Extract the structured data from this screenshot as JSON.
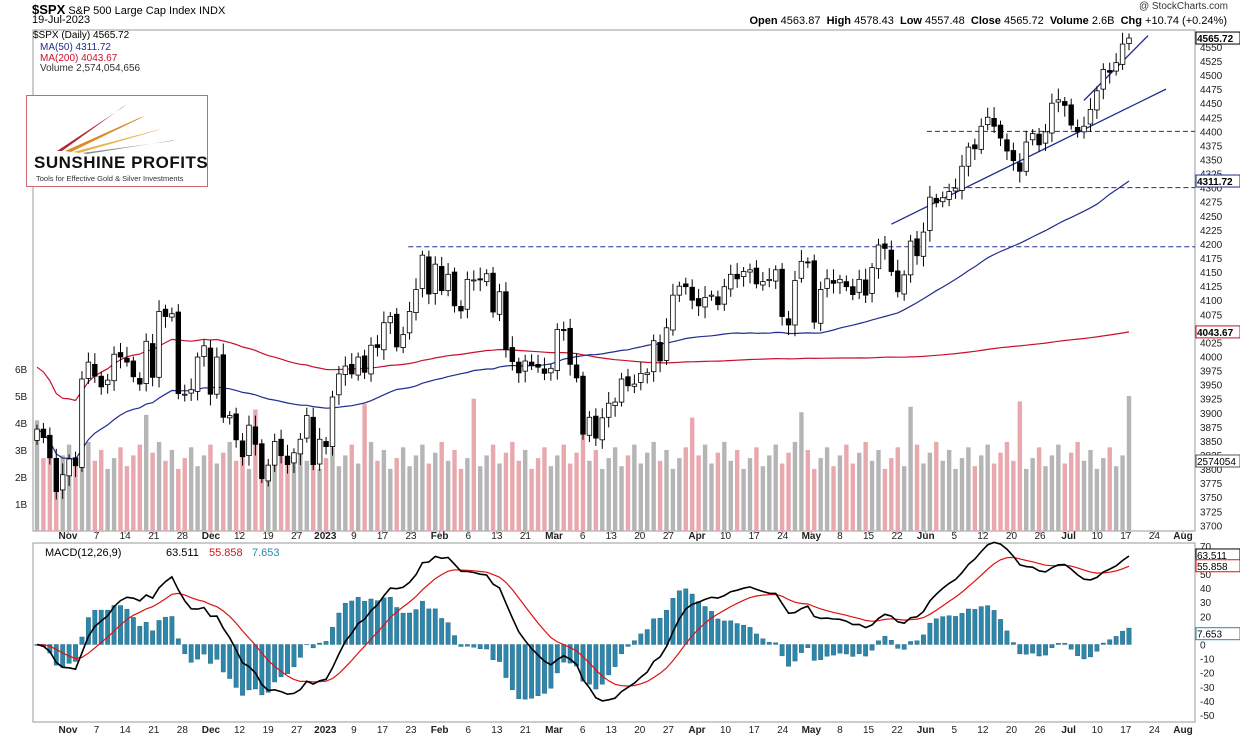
{
  "header": {
    "symbol": "$SPX",
    "name": "S&P 500 Large Cap Index",
    "exchange": "INDX",
    "date": "19-Jul-2023",
    "attribution": "@ StockCharts.com",
    "ohlc": {
      "open_label": "Open",
      "open": "4563.87",
      "high_label": "High",
      "high": "4578.43",
      "low_label": "Low",
      "low": "4557.48",
      "close_label": "Close",
      "close": "4565.72",
      "volume_label": "Volume",
      "volume": "2.6B",
      "chg_label": "Chg",
      "chg": "+10.74 (+0.24%)"
    }
  },
  "legend": {
    "price": "$SPX (Daily) 4565.72",
    "ma50": "MA(50) 4311.72",
    "ma200": "MA(200) 4043.67",
    "volume": "Volume 2,574,054,656"
  },
  "logo": {
    "brand": "SUNSHINE PROFITS",
    "tagline": "Tools for Effective Gold & Silver Investments"
  },
  "macd_legend": {
    "label": "MACD(12,26,9)",
    "macd": "63.511",
    "signal": "55.858",
    "hist": "7.653"
  },
  "colors": {
    "ma50": "#1f2c8f",
    "ma200": "#c8102e",
    "up": "#ffffff",
    "down": "#000000",
    "vol_up": "#b5b5b5",
    "vol_down": "#e8a8ad",
    "hist": "#2e86ab",
    "trend": "#1f2c8f",
    "signal": "#e01010",
    "macd": "#000000"
  },
  "chart_data": [
    {
      "type": "candlestick",
      "title": "$SPX S&P 500 Large Cap Index",
      "x_tick_labels": [
        "Nov",
        "7",
        "14",
        "21",
        "28",
        "Dec",
        "12",
        "19",
        "27",
        "2023",
        "9",
        "17",
        "23",
        "Feb",
        "6",
        "13",
        "21",
        "Mar",
        "6",
        "13",
        "20",
        "27",
        "Apr",
        "10",
        "17",
        "24",
        "May",
        "8",
        "15",
        "22",
        "Jun",
        "5",
        "12",
        "20",
        "26",
        "Jul",
        "10",
        "17",
        "24",
        "Aug"
      ],
      "y_ticks": [
        3700,
        3725,
        3750,
        3775,
        3800,
        3825,
        3850,
        3875,
        3900,
        3925,
        3950,
        3975,
        4000,
        4025,
        4050,
        4075,
        4100,
        4125,
        4150,
        4175,
        4200,
        4225,
        4250,
        4275,
        4300,
        4325,
        4350,
        4375,
        4400,
        4425,
        4450,
        4475,
        4500,
        4525,
        4550
      ],
      "ylim": [
        3690,
        4580
      ],
      "closes": [
        3871,
        3856,
        3820,
        3760,
        3790,
        3818,
        3806,
        3960,
        3990,
        3965,
        3946,
        3958,
        4004,
        3999,
        3990,
        3964,
        3951,
        4027,
        3963,
        4080,
        4071,
        4076,
        3934,
        3933,
        3941,
        3999,
        4019,
        3933,
        3999,
        3892,
        3895,
        3852,
        3822,
        3878,
        3844,
        3783,
        3807,
        3849,
        3824,
        3808,
        3829,
        3853,
        3895,
        3808,
        3853,
        3840,
        3928,
        3969,
        3983,
        3969,
        3999,
        3972,
        4020,
        4016,
        4060,
        4071,
        4017,
        4039,
        4080,
        4119,
        4180,
        4111,
        4164,
        4117,
        4146,
        4090,
        4081,
        4137,
        4136,
        4136,
        4147,
        4079,
        4115,
        4012,
        3991,
        3971,
        3992,
        3984,
        3981,
        3970,
        3979,
        4048,
        4046,
        3986,
        3962,
        3862,
        3892,
        3855,
        3891,
        3917,
        3919,
        3960,
        3948,
        3951,
        3970,
        3971,
        4028,
        3992,
        4051,
        4109,
        4125,
        4124,
        4100,
        4090,
        4105,
        4109,
        4092,
        4124,
        4146,
        4138,
        4151,
        4154,
        4129,
        4133,
        4137,
        4154,
        4071,
        4056,
        4135,
        4169,
        4167,
        4061,
        4119,
        4138,
        4130,
        4137,
        4124,
        4110,
        4137,
        4109,
        4158,
        4198,
        4192,
        4151,
        4115,
        4145,
        4205,
        4179,
        4221,
        4283,
        4273,
        4282,
        4293,
        4299,
        4338,
        4372,
        4369,
        4409,
        4425,
        4409,
        4388,
        4365,
        4348,
        4329,
        4381,
        4396,
        4376,
        4399,
        4450,
        4456,
        4446,
        4411,
        4399,
        4409,
        4439,
        4472,
        4510,
        4505,
        4522,
        4555,
        4565.72
      ],
      "ma50_last": 4311.72,
      "ma200_last": 4043.67,
      "horizontal_levels": [
        4400,
        4300,
        4195
      ],
      "volume_ticks": [
        "1B",
        "2B",
        "3B",
        "4B",
        "5B",
        "6B"
      ],
      "volume_last": "2574054"
    },
    {
      "type": "line",
      "title": "MACD(12,26,9)",
      "y_ticks": [
        -50,
        -40,
        -30,
        -20,
        -10,
        0,
        10,
        20,
        30,
        40,
        50,
        60,
        70
      ],
      "ylim": [
        -55,
        72
      ],
      "series": [
        {
          "name": "MACD(12,26,9)",
          "last": 63.511
        },
        {
          "name": "Signal",
          "last": 55.858
        },
        {
          "name": "Histogram",
          "last": 7.653
        }
      ]
    }
  ]
}
